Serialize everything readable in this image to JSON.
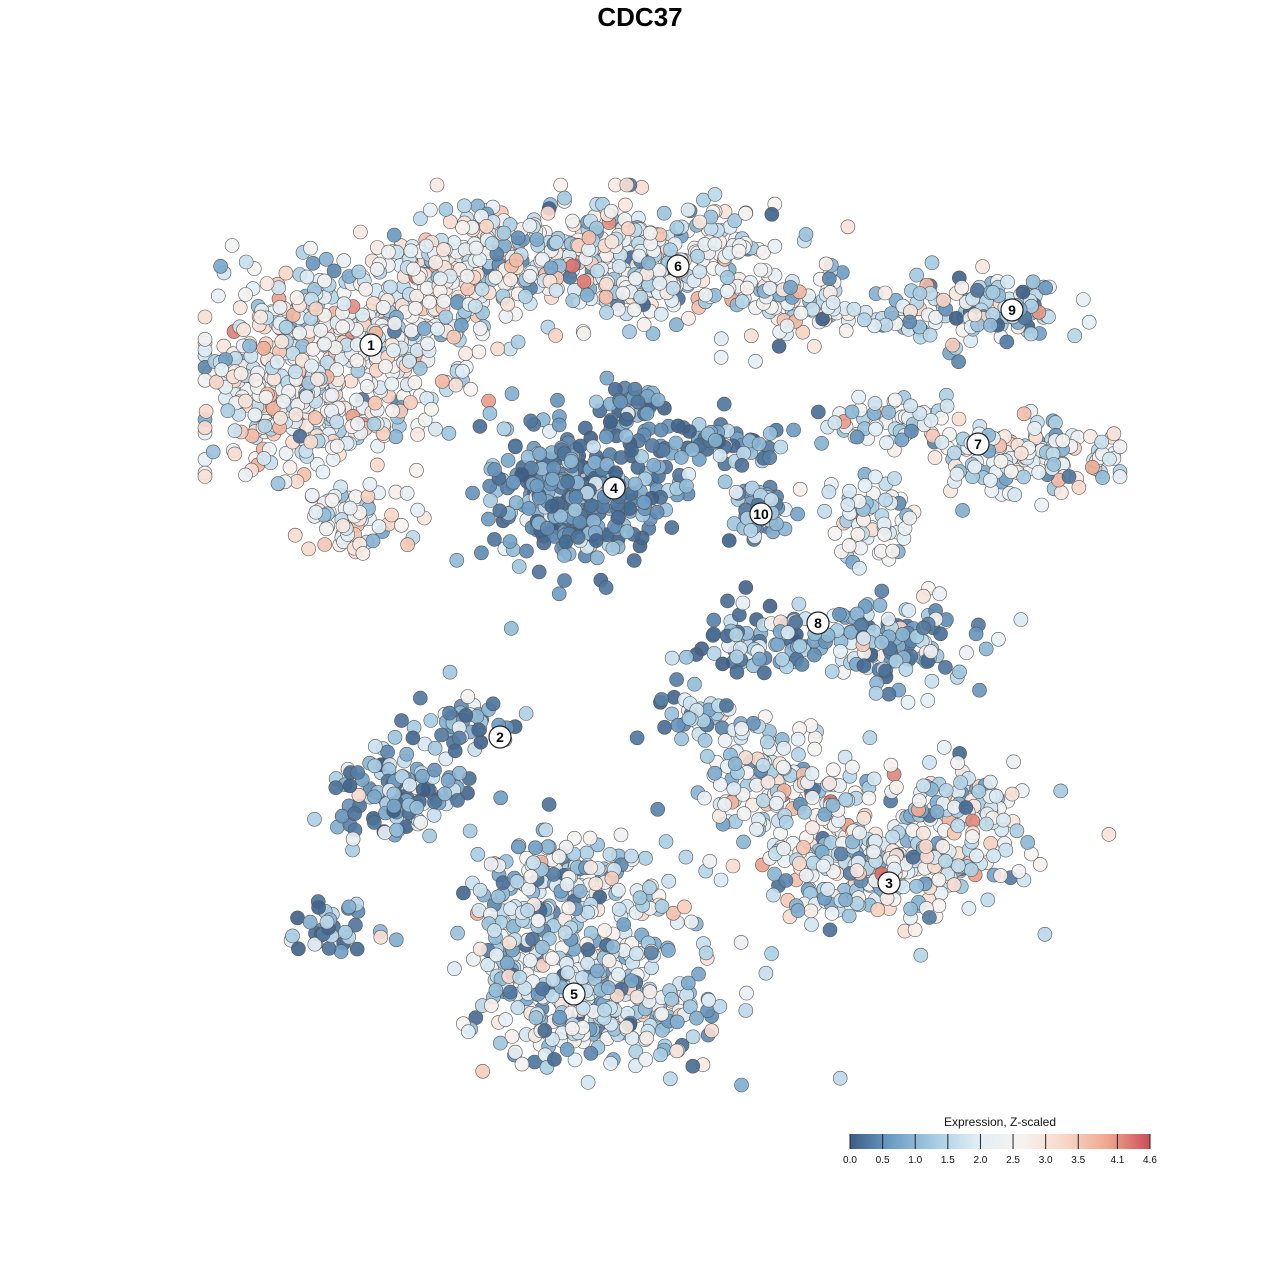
{
  "chart_data": {
    "type": "scatter",
    "title": "CDC37",
    "description_note": "",
    "xlabel": "",
    "ylabel": "",
    "grid": false,
    "legend": {
      "title": "Expression, Z-scaled",
      "placement": "bottom-right",
      "tick_labels": [
        "0.0",
        "0.5",
        "1.0",
        "1.5",
        "2.0",
        "2.5",
        "3.0",
        "3.5",
        "4.1",
        "4.6"
      ],
      "range": [
        0.0,
        4.6
      ],
      "colors": [
        "#3b5d85",
        "#6f9fc6",
        "#a7cde3",
        "#e2eef6",
        "#f6f3f1",
        "#f8d7c8",
        "#eea88f",
        "#c94f57"
      ]
    },
    "marker": {
      "fill_opacity": 0.9,
      "stroke": "#555555"
    },
    "clusters": [
      {
        "label": "1",
        "mean_expr": 2.3,
        "spread": 0.8
      },
      {
        "label": "2",
        "mean_expr": 0.8,
        "spread": 0.9
      },
      {
        "label": "3",
        "mean_expr": 2.0,
        "spread": 0.9
      },
      {
        "label": "4",
        "mean_expr": 0.5,
        "spread": 0.6
      },
      {
        "label": "5",
        "mean_expr": 1.6,
        "spread": 0.9
      },
      {
        "label": "6",
        "mean_expr": 2.0,
        "spread": 0.9
      },
      {
        "label": "7",
        "mean_expr": 2.0,
        "spread": 0.8
      },
      {
        "label": "8",
        "mean_expr": 1.0,
        "spread": 0.9
      },
      {
        "label": "9",
        "mean_expr": 1.5,
        "spread": 0.9
      },
      {
        "label": "10",
        "mean_expr": 0.9,
        "spread": 0.7
      }
    ]
  }
}
